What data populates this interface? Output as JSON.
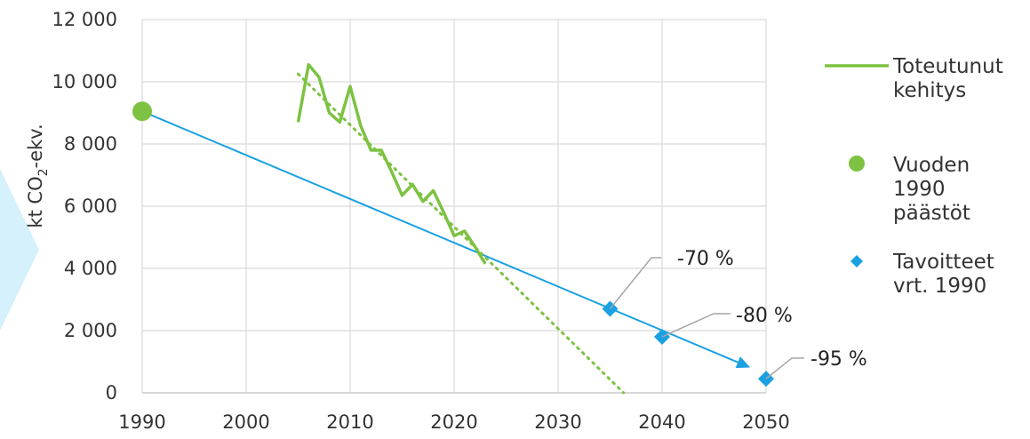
{
  "chart_data": {
    "type": "line",
    "ylabel": {
      "text": "kt CO",
      "subscript": "2",
      "suffix": "-ekv."
    },
    "xlim": [
      1990,
      2050
    ],
    "ylim": [
      0,
      12000
    ],
    "x_ticks": [
      1990,
      2000,
      2010,
      2020,
      2030,
      2040,
      2050
    ],
    "y_ticks": [
      0,
      2000,
      4000,
      6000,
      8000,
      10000,
      12000
    ],
    "x_tick_labels": [
      "1990",
      "2000",
      "2010",
      "2020",
      "2030",
      "2040",
      "2050"
    ],
    "y_tick_labels": [
      "0",
      "2 000",
      "4 000",
      "6 000",
      "8 000",
      "10 000",
      "12 000"
    ],
    "grid": "vertical and horizontal",
    "legend_position": "right",
    "colors": {
      "actual": "#7dc242",
      "target": "#1ba1e2",
      "grid": "#d9d9d9",
      "axis": "#bfbfbf",
      "callout": "#a6a6a6",
      "accent_shape": "#d5f1fb"
    },
    "series": [
      {
        "key": "actual",
        "name_lines": [
          "Toteutunut",
          "kehitys"
        ],
        "x": [
          2005,
          2006,
          2007,
          2008,
          2009,
          2010,
          2011,
          2012,
          2013,
          2014,
          2015,
          2016,
          2017,
          2018,
          2019,
          2020,
          2021,
          2022,
          2023
        ],
        "y": [
          8700,
          10550,
          10150,
          9000,
          8700,
          9850,
          8600,
          7800,
          7800,
          7100,
          6350,
          6700,
          6150,
          6500,
          5800,
          5050,
          5200,
          4700,
          4150
        ]
      },
      {
        "key": "trend",
        "style": "dotted",
        "x": [
          2005,
          2036.3
        ],
        "y": [
          10250,
          0
        ]
      },
      {
        "key": "baseline",
        "name_lines": [
          "Vuoden",
          "1990",
          "päästöt"
        ],
        "x": [
          1990
        ],
        "y": [
          9050
        ]
      },
      {
        "key": "targets",
        "name_lines": [
          "Tavoitteet",
          "vrt. 1990"
        ],
        "x": [
          2035,
          2040,
          2050
        ],
        "y": [
          2700,
          1800,
          450
        ]
      },
      {
        "key": "target_line",
        "x": [
          1990,
          2048
        ],
        "y": [
          9050,
          880
        ]
      }
    ],
    "annotations": [
      {
        "text": "-70 %",
        "x": 2035,
        "y": 2700
      },
      {
        "text": "-80 %",
        "x": 2040,
        "y": 1800
      },
      {
        "text": "-95 %",
        "x": 2050,
        "y": 450
      }
    ]
  }
}
